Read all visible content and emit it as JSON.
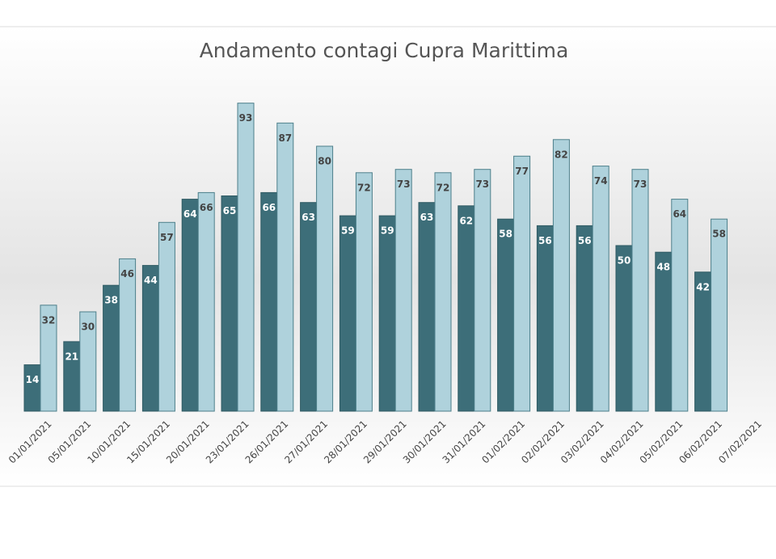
{
  "chart_data": {
    "type": "bar",
    "title": "Andamento contagi Cupra Marittima",
    "categories": [
      "01/01/2021",
      "05/01/2021",
      "10/01/2021",
      "15/01/2021",
      "20/01/2021",
      "23/01/2021",
      "26/01/2021",
      "27/01/2021",
      "28/01/2021",
      "29/01/2021",
      "30/01/2021",
      "31/01/2021",
      "01/02/2021",
      "02/02/2021",
      "03/02/2021",
      "04/02/2021",
      "05/02/2021",
      "06/02/2021",
      "07/02/2021"
    ],
    "series": [
      {
        "color": "#3d6e79",
        "values": [
          14,
          21,
          38,
          44,
          64,
          65,
          66,
          63,
          59,
          59,
          63,
          62,
          58,
          56,
          56,
          50,
          48,
          42,
          null
        ]
      },
      {
        "color": "#afd2dc",
        "values": [
          32,
          30,
          46,
          57,
          66,
          93,
          87,
          80,
          72,
          73,
          72,
          73,
          77,
          82,
          74,
          73,
          64,
          58,
          null
        ]
      }
    ]
  }
}
